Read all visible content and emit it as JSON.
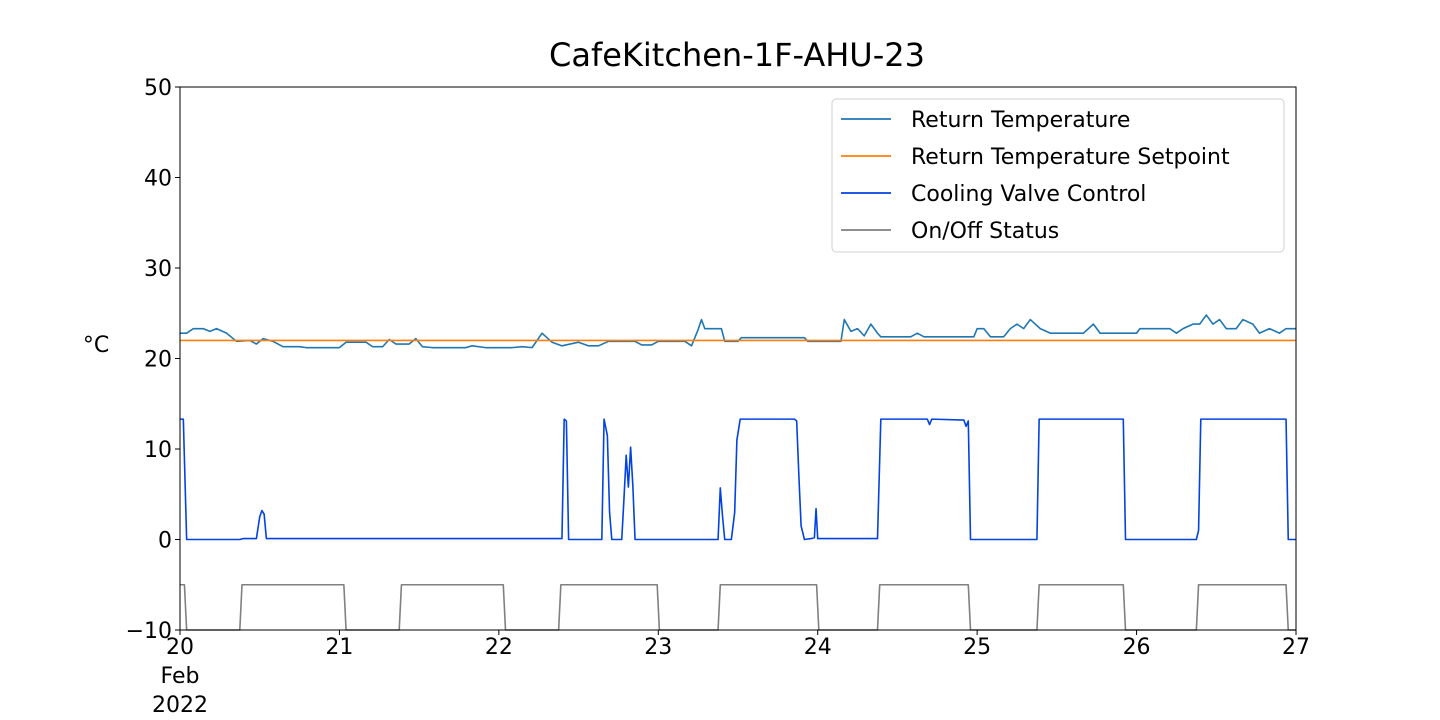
{
  "chart_data": {
    "type": "line",
    "title": "CafeKitchen-1F-AHU-23",
    "ylabel": "°C",
    "xlabel": "",
    "x_range": [
      "2022-02-20T00:00",
      "2022-02-27T00:00"
    ],
    "ylim": [
      -10,
      50
    ],
    "y_ticks": [
      {
        "value": 50,
        "label": "50"
      },
      {
        "value": 40,
        "label": "40"
      },
      {
        "value": 30,
        "label": "30"
      },
      {
        "value": 20,
        "label": "20"
      },
      {
        "value": 10,
        "label": "10"
      },
      {
        "value": 0,
        "label": "0"
      },
      {
        "value": -10,
        "label": "−10"
      }
    ],
    "x_ticks": [
      {
        "x": "2022-02-20",
        "lines": [
          "20",
          "Feb",
          "2022"
        ]
      },
      {
        "x": "2022-02-21",
        "lines": [
          "21"
        ]
      },
      {
        "x": "2022-02-22",
        "lines": [
          "22"
        ]
      },
      {
        "x": "2022-02-23",
        "lines": [
          "23"
        ]
      },
      {
        "x": "2022-02-24",
        "lines": [
          "24"
        ]
      },
      {
        "x": "2022-02-25",
        "lines": [
          "25"
        ]
      },
      {
        "x": "2022-02-26",
        "lines": [
          "26"
        ]
      },
      {
        "x": "2022-02-27",
        "lines": [
          "27"
        ]
      }
    ],
    "grid": false,
    "legend_position": "top-right",
    "series": [
      {
        "name": "Return Temperature",
        "color": "#1f77b4",
        "points": [
          [
            "2022-02-20T00:00",
            22.8
          ],
          [
            "2022-02-20T01:00",
            22.8
          ],
          [
            "2022-02-20T02:00",
            23.3
          ],
          [
            "2022-02-20T03:30",
            23.3
          ],
          [
            "2022-02-20T04:30",
            23.0
          ],
          [
            "2022-02-20T05:30",
            23.3
          ],
          [
            "2022-02-20T07:00",
            22.8
          ],
          [
            "2022-02-20T08:30",
            21.9
          ],
          [
            "2022-02-20T10:30",
            22.0
          ],
          [
            "2022-02-20T11:30",
            21.6
          ],
          [
            "2022-02-20T12:30",
            22.2
          ],
          [
            "2022-02-20T14:00",
            21.9
          ],
          [
            "2022-02-20T15:30",
            21.3
          ],
          [
            "2022-02-20T18:00",
            21.3
          ],
          [
            "2022-02-20T19:00",
            21.2
          ],
          [
            "2022-02-21T00:00",
            21.2
          ],
          [
            "2022-02-21T01:00",
            21.8
          ],
          [
            "2022-02-21T04:00",
            21.8
          ],
          [
            "2022-02-21T05:00",
            21.3
          ],
          [
            "2022-02-21T06:30",
            21.3
          ],
          [
            "2022-02-21T07:30",
            22.1
          ],
          [
            "2022-02-21T08:30",
            21.6
          ],
          [
            "2022-02-21T10:30",
            21.6
          ],
          [
            "2022-02-21T11:30",
            22.2
          ],
          [
            "2022-02-21T12:30",
            21.3
          ],
          [
            "2022-02-21T14:00",
            21.2
          ],
          [
            "2022-02-21T19:00",
            21.2
          ],
          [
            "2022-02-21T20:00",
            21.4
          ],
          [
            "2022-02-21T22:00",
            21.2
          ],
          [
            "2022-02-22T02:00",
            21.2
          ],
          [
            "2022-02-22T03:30",
            21.3
          ],
          [
            "2022-02-22T05:00",
            21.2
          ],
          [
            "2022-02-22T06:30",
            22.8
          ],
          [
            "2022-02-22T08:00",
            21.8
          ],
          [
            "2022-02-22T09:30",
            21.4
          ],
          [
            "2022-02-22T12:00",
            21.8
          ],
          [
            "2022-02-22T13:30",
            21.4
          ],
          [
            "2022-02-22T15:00",
            21.4
          ],
          [
            "2022-02-22T16:30",
            21.9
          ],
          [
            "2022-02-22T20:30",
            21.9
          ],
          [
            "2022-02-22T21:30",
            21.5
          ],
          [
            "2022-02-22T23:00",
            21.5
          ],
          [
            "2022-02-23T00:00",
            21.9
          ],
          [
            "2022-02-23T04:00",
            21.9
          ],
          [
            "2022-02-23T05:00",
            21.4
          ],
          [
            "2022-02-23T06:00",
            23.2
          ],
          [
            "2022-02-23T06:30",
            24.3
          ],
          [
            "2022-02-23T07:00",
            23.3
          ],
          [
            "2022-02-23T09:30",
            23.3
          ],
          [
            "2022-02-23T10:00",
            21.9
          ],
          [
            "2022-02-23T12:00",
            21.9
          ],
          [
            "2022-02-23T12:30",
            22.3
          ],
          [
            "2022-02-23T22:00",
            22.3
          ],
          [
            "2022-02-23T22:30",
            21.9
          ],
          [
            "2022-02-24T03:30",
            21.9
          ],
          [
            "2022-02-24T04:00",
            24.3
          ],
          [
            "2022-02-24T05:00",
            23.0
          ],
          [
            "2022-02-24T06:00",
            23.3
          ],
          [
            "2022-02-24T07:00",
            22.5
          ],
          [
            "2022-02-24T08:00",
            23.8
          ],
          [
            "2022-02-24T09:00",
            22.8
          ],
          [
            "2022-02-24T09:30",
            22.4
          ],
          [
            "2022-02-24T14:00",
            22.4
          ],
          [
            "2022-02-24T15:00",
            22.8
          ],
          [
            "2022-02-24T16:00",
            22.4
          ],
          [
            "2022-02-24T23:30",
            22.4
          ],
          [
            "2022-02-25T00:00",
            23.3
          ],
          [
            "2022-02-25T01:00",
            23.3
          ],
          [
            "2022-02-25T02:00",
            22.4
          ],
          [
            "2022-02-25T04:00",
            22.4
          ],
          [
            "2022-02-25T05:00",
            23.3
          ],
          [
            "2022-02-25T06:00",
            23.8
          ],
          [
            "2022-02-25T07:00",
            23.3
          ],
          [
            "2022-02-25T08:00",
            24.3
          ],
          [
            "2022-02-25T09:30",
            23.3
          ],
          [
            "2022-02-25T11:00",
            22.8
          ],
          [
            "2022-02-25T16:00",
            22.8
          ],
          [
            "2022-02-25T17:30",
            23.8
          ],
          [
            "2022-02-25T18:30",
            22.8
          ],
          [
            "2022-02-26T00:00",
            22.8
          ],
          [
            "2022-02-26T00:30",
            23.3
          ],
          [
            "2022-02-26T05:00",
            23.3
          ],
          [
            "2022-02-26T06:00",
            22.8
          ],
          [
            "2022-02-26T07:00",
            23.3
          ],
          [
            "2022-02-26T08:30",
            23.8
          ],
          [
            "2022-02-26T09:30",
            23.8
          ],
          [
            "2022-02-26T10:30",
            24.8
          ],
          [
            "2022-02-26T11:30",
            23.8
          ],
          [
            "2022-02-26T12:30",
            24.3
          ],
          [
            "2022-02-26T13:30",
            23.3
          ],
          [
            "2022-02-26T15:00",
            23.3
          ],
          [
            "2022-02-26T16:00",
            24.3
          ],
          [
            "2022-02-26T17:30",
            23.8
          ],
          [
            "2022-02-26T18:30",
            22.8
          ],
          [
            "2022-02-26T20:00",
            23.3
          ],
          [
            "2022-02-26T21:30",
            22.8
          ],
          [
            "2022-02-26T22:30",
            23.3
          ],
          [
            "2022-02-27T00:00",
            23.3
          ]
        ]
      },
      {
        "name": "Return Temperature Setpoint",
        "color": "#ff7f0e",
        "points": [
          [
            "2022-02-20T00:00",
            22.0
          ],
          [
            "2022-02-27T00:00",
            22.0
          ]
        ]
      },
      {
        "name": "Cooling Valve Control",
        "color": "#0343df",
        "points": [
          [
            "2022-02-20T00:00",
            13.3
          ],
          [
            "2022-02-20T00:30",
            13.3
          ],
          [
            "2022-02-20T01:00",
            0.0
          ],
          [
            "2022-02-20T09:00",
            0.0
          ],
          [
            "2022-02-20T09:30",
            0.1
          ],
          [
            "2022-02-20T11:30",
            0.1
          ],
          [
            "2022-02-20T12:00",
            2.5
          ],
          [
            "2022-02-20T12:20",
            3.2
          ],
          [
            "2022-02-20T12:40",
            2.8
          ],
          [
            "2022-02-20T13:00",
            0.1
          ],
          [
            "2022-02-22T09:30",
            0.1
          ],
          [
            "2022-02-22T09:50",
            13.3
          ],
          [
            "2022-02-22T10:10",
            13.1
          ],
          [
            "2022-02-22T10:30",
            0.0
          ],
          [
            "2022-02-22T15:30",
            0.0
          ],
          [
            "2022-02-22T15:50",
            13.3
          ],
          [
            "2022-02-22T16:20",
            11.5
          ],
          [
            "2022-02-22T16:40",
            3.0
          ],
          [
            "2022-02-22T17:00",
            0.0
          ],
          [
            "2022-02-22T18:30",
            0.0
          ],
          [
            "2022-02-22T18:50",
            4.5
          ],
          [
            "2022-02-22T19:10",
            9.3
          ],
          [
            "2022-02-22T19:30",
            5.8
          ],
          [
            "2022-02-22T19:50",
            10.2
          ],
          [
            "2022-02-22T20:10",
            6.0
          ],
          [
            "2022-02-22T20:30",
            0.0
          ],
          [
            "2022-02-23T09:00",
            0.0
          ],
          [
            "2022-02-23T09:20",
            5.7
          ],
          [
            "2022-02-23T09:40",
            2.6
          ],
          [
            "2022-02-23T10:00",
            0.0
          ],
          [
            "2022-02-23T11:00",
            0.0
          ],
          [
            "2022-02-23T11:30",
            3.0
          ],
          [
            "2022-02-23T11:50",
            11.0
          ],
          [
            "2022-02-23T12:20",
            13.3
          ],
          [
            "2022-02-23T20:30",
            13.3
          ],
          [
            "2022-02-23T20:50",
            13.1
          ],
          [
            "2022-02-23T21:10",
            7.0
          ],
          [
            "2022-02-23T21:30",
            1.5
          ],
          [
            "2022-02-23T22:00",
            0.0
          ],
          [
            "2022-02-23T23:00",
            0.1
          ],
          [
            "2022-02-23T23:30",
            0.2
          ],
          [
            "2022-02-23T23:45",
            3.4
          ],
          [
            "2022-02-24T00:00",
            0.1
          ],
          [
            "2022-02-24T09:00",
            0.1
          ],
          [
            "2022-02-24T09:30",
            13.3
          ],
          [
            "2022-02-24T16:30",
            13.3
          ],
          [
            "2022-02-24T16:50",
            12.7
          ],
          [
            "2022-02-24T17:10",
            13.3
          ],
          [
            "2022-02-24T22:00",
            13.2
          ],
          [
            "2022-02-24T22:20",
            12.5
          ],
          [
            "2022-02-24T22:40",
            13.1
          ],
          [
            "2022-02-24T23:00",
            0.0
          ],
          [
            "2022-02-25T09:00",
            0.0
          ],
          [
            "2022-02-25T09:20",
            13.3
          ],
          [
            "2022-02-25T22:00",
            13.3
          ],
          [
            "2022-02-25T22:20",
            0.0
          ],
          [
            "2022-02-26T09:00",
            0.0
          ],
          [
            "2022-02-26T09:20",
            1.0
          ],
          [
            "2022-02-26T09:40",
            13.3
          ],
          [
            "2022-02-26T22:30",
            13.3
          ],
          [
            "2022-02-26T22:50",
            0.0
          ],
          [
            "2022-02-27T00:00",
            0.0
          ]
        ]
      },
      {
        "name": "On/Off Status",
        "color": "#808080",
        "points": [
          [
            "2022-02-20T00:00",
            -5.0
          ],
          [
            "2022-02-20T00:40",
            -5.0
          ],
          [
            "2022-02-20T01:00",
            -10.0
          ],
          [
            "2022-02-20T09:00",
            -10.0
          ],
          [
            "2022-02-20T09:20",
            -5.0
          ],
          [
            "2022-02-21T00:40",
            -5.0
          ],
          [
            "2022-02-21T01:00",
            -10.0
          ],
          [
            "2022-02-21T09:00",
            -10.0
          ],
          [
            "2022-02-21T09:20",
            -5.0
          ],
          [
            "2022-02-22T00:40",
            -5.0
          ],
          [
            "2022-02-22T01:00",
            -10.0
          ],
          [
            "2022-02-22T09:00",
            -10.0
          ],
          [
            "2022-02-22T09:20",
            -5.0
          ],
          [
            "2022-02-22T23:50",
            -5.0
          ],
          [
            "2022-02-23T00:10",
            -10.0
          ],
          [
            "2022-02-23T09:00",
            -10.0
          ],
          [
            "2022-02-23T09:20",
            -5.0
          ],
          [
            "2022-02-23T23:50",
            -5.0
          ],
          [
            "2022-02-24T00:10",
            -10.0
          ],
          [
            "2022-02-24T09:00",
            -10.0
          ],
          [
            "2022-02-24T09:20",
            -5.0
          ],
          [
            "2022-02-24T22:40",
            -5.0
          ],
          [
            "2022-02-24T23:00",
            -10.0
          ],
          [
            "2022-02-25T09:00",
            -10.0
          ],
          [
            "2022-02-25T09:20",
            -5.0
          ],
          [
            "2022-02-25T22:00",
            -5.0
          ],
          [
            "2022-02-25T22:20",
            -10.0
          ],
          [
            "2022-02-26T09:00",
            -10.0
          ],
          [
            "2022-02-26T09:20",
            -5.0
          ],
          [
            "2022-02-26T22:30",
            -5.0
          ],
          [
            "2022-02-26T22:50",
            -10.0
          ],
          [
            "2022-02-27T00:00",
            -10.0
          ]
        ]
      }
    ]
  }
}
